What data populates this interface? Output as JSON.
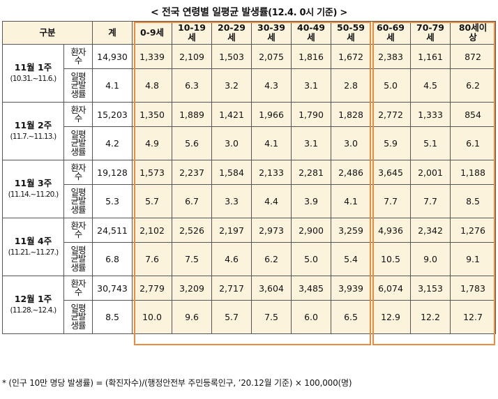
{
  "title": {
    "main": "< 전국 연령별 일평균 발생률",
    "sub": "(12.4. 0시 기준) >"
  },
  "header": {
    "gubun": "구분",
    "total": "계",
    "ages": [
      "0-9세",
      "10-19\n세",
      "20-29\n세",
      "30-39\n세",
      "40-49\n세",
      "50-59\n세",
      "60-69\n세",
      "70-79\n세",
      "80세이\n상"
    ]
  },
  "row_labels": {
    "count": "환자\n수",
    "rate": "일평\n균발\n생률"
  },
  "weeks": [
    {
      "name": "11월 1주",
      "range": "(10.31.~11.6.)",
      "count_total": "14,930",
      "counts": [
        "1,339",
        "2,109",
        "1,503",
        "2,075",
        "1,816",
        "1,672",
        "2,383",
        "1,161",
        "872"
      ],
      "rate_total": "4.1",
      "rates": [
        "4.8",
        "6.3",
        "3.2",
        "4.3",
        "3.1",
        "2.8",
        "5.0",
        "4.5",
        "6.2"
      ]
    },
    {
      "name": "11월 2주",
      "range": "(11.7.~11.13.)",
      "count_total": "15,203",
      "counts": [
        "1,350",
        "1,889",
        "1,421",
        "1,966",
        "1,790",
        "1,828",
        "2,772",
        "1,333",
        "854"
      ],
      "rate_total": "4.2",
      "rates": [
        "4.9",
        "5.6",
        "3.0",
        "4.1",
        "3.1",
        "3.0",
        "5.9",
        "5.1",
        "6.1"
      ]
    },
    {
      "name": "11월 3주",
      "range": "(11.14.~11.20.)",
      "count_total": "19,128",
      "counts": [
        "1,573",
        "2,237",
        "1,584",
        "2,133",
        "2,281",
        "2,486",
        "3,645",
        "2,001",
        "1,188"
      ],
      "rate_total": "5.3",
      "rates": [
        "5.7",
        "6.7",
        "3.3",
        "4.4",
        "3.9",
        "4.1",
        "7.7",
        "7.7",
        "8.5"
      ]
    },
    {
      "name": "11월 4주",
      "range": "(11.21.~11.27.)",
      "count_total": "24,511",
      "counts": [
        "2,102",
        "2,526",
        "2,197",
        "2,973",
        "2,900",
        "3,259",
        "4,936",
        "2,342",
        "1,276"
      ],
      "rate_total": "6.8",
      "rates": [
        "7.6",
        "7.5",
        "4.6",
        "6.2",
        "5.0",
        "5.4",
        "10.5",
        "9.0",
        "9.1"
      ]
    },
    {
      "name": "12월 1주",
      "range": "(11.28.~12.4.)",
      "count_total": "30,743",
      "counts": [
        "2,779",
        "3,209",
        "2,717",
        "3,604",
        "3,485",
        "3,939",
        "6,074",
        "3,153",
        "1,783"
      ],
      "rate_total": "8.5",
      "rates": [
        "10.0",
        "9.6",
        "5.7",
        "7.5",
        "6.0",
        "6.5",
        "12.9",
        "12.2",
        "12.7"
      ]
    }
  ],
  "footnote": "* (인구 10만 명당 발생률) = (확진자수)/(행정안전부 주민등록인구, ’20.12월 기준) × 100,000(명)",
  "colors": {
    "highlight_border": "#ee8a3c",
    "cell_fill": "#fbf3db"
  }
}
